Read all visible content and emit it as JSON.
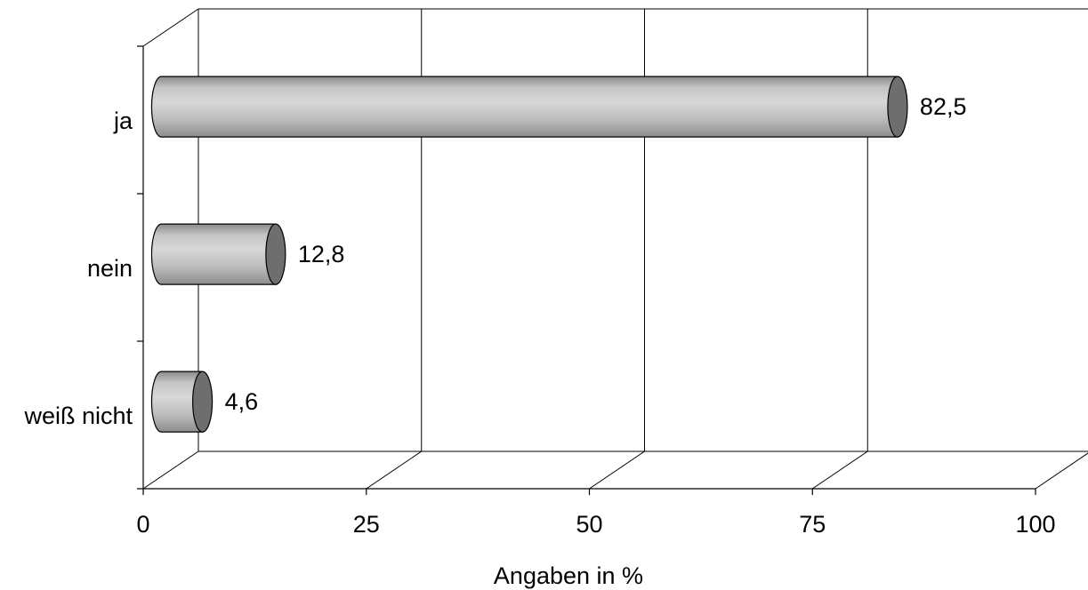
{
  "chart_data": {
    "type": "bar",
    "orientation": "horizontal",
    "style": "3d-cylinder",
    "categories": [
      "ja",
      "nein",
      "weiß nicht"
    ],
    "values": [
      82.5,
      12.8,
      4.6
    ],
    "value_labels": [
      "82,5",
      "12,8",
      "4,6"
    ],
    "xlabel": "Angaben in %",
    "ylabel": "",
    "title": "",
    "xlim": [
      0,
      100
    ],
    "xticks": [
      0,
      25,
      50,
      75,
      100
    ],
    "xtick_labels": [
      "0",
      "25",
      "50",
      "75",
      "100"
    ],
    "grid": "vertical",
    "legend": "none",
    "colors": {
      "bar_body": "#b8b8b8",
      "bar_cap": "#6e6e6e"
    }
  }
}
